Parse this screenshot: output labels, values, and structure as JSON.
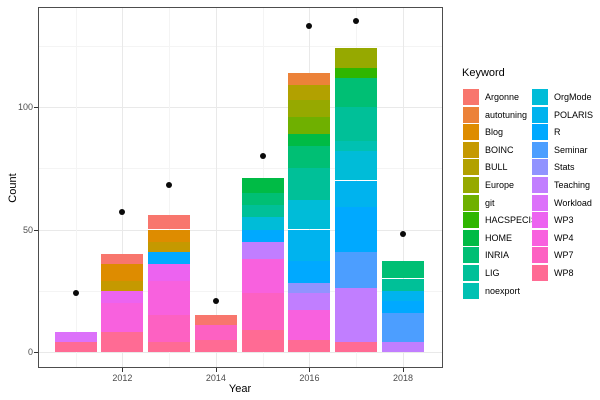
{
  "chart_data": {
    "type": "bar",
    "subtype": "stacked-bar-with-points",
    "title": "",
    "xlabel": "Year",
    "ylabel": "Count",
    "legend_title": "Keyword",
    "legend_position": "right",
    "grid": true,
    "x_major_ticks": [
      2012,
      2014,
      2016,
      2018
    ],
    "x_minor_ticks": [
      2011,
      2013,
      2015,
      2017
    ],
    "y_major_ticks": [
      0,
      50,
      100
    ],
    "y_minor_ticks": [
      25,
      75,
      125
    ],
    "xlim": [
      2010.55,
      2018.45
    ],
    "ylim": [
      -7,
      141
    ],
    "keywords": [
      {
        "name": "Argonne",
        "color": "#F8766D"
      },
      {
        "name": "autotuning",
        "color": "#EC8239"
      },
      {
        "name": "Blog",
        "color": "#DE8C00"
      },
      {
        "name": "BOINC",
        "color": "#C59900"
      },
      {
        "name": "BULL",
        "color": "#B2A100"
      },
      {
        "name": "Europe",
        "color": "#96A900"
      },
      {
        "name": "git",
        "color": "#6FB000"
      },
      {
        "name": "HACSPECIS",
        "color": "#2FB600"
      },
      {
        "name": "HOME",
        "color": "#00BB45"
      },
      {
        "name": "INRIA",
        "color": "#00BF74"
      },
      {
        "name": "LIG",
        "color": "#00C098"
      },
      {
        "name": "noexport",
        "color": "#00C1B2"
      },
      {
        "name": "OrgMode",
        "color": "#00BCD8"
      },
      {
        "name": "POLARIS",
        "color": "#00B3EE"
      },
      {
        "name": "R",
        "color": "#00A9FF"
      },
      {
        "name": "Seminar",
        "color": "#4C9EFF"
      },
      {
        "name": "Stats",
        "color": "#9193FF"
      },
      {
        "name": "Teaching",
        "color": "#C17EFF"
      },
      {
        "name": "Workload",
        "color": "#DC71FA"
      },
      {
        "name": "WP3",
        "color": "#EC63F0"
      },
      {
        "name": "WP4",
        "color": "#F861DE"
      },
      {
        "name": "WP7",
        "color": "#FD61C2"
      },
      {
        "name": "WP8",
        "color": "#FF6B94"
      }
    ],
    "bars": [
      {
        "year": 2011,
        "total": 8,
        "segments": [
          {
            "keyword": "WP8",
            "value": 4
          },
          {
            "keyword": "Workload",
            "value": 4
          }
        ]
      },
      {
        "year": 2012,
        "total": 40,
        "segments": [
          {
            "keyword": "WP8",
            "value": 8
          },
          {
            "keyword": "WP4",
            "value": 12
          },
          {
            "keyword": "WP3",
            "value": 5
          },
          {
            "keyword": "BOINC",
            "value": 4
          },
          {
            "keyword": "Blog",
            "value": 7
          },
          {
            "keyword": "Argonne",
            "value": 4
          }
        ]
      },
      {
        "year": 2013,
        "total": 56,
        "segments": [
          {
            "keyword": "WP8",
            "value": 4
          },
          {
            "keyword": "WP7",
            "value": 11
          },
          {
            "keyword": "WP4",
            "value": 14
          },
          {
            "keyword": "WP3",
            "value": 7
          },
          {
            "keyword": "R",
            "value": 5
          },
          {
            "keyword": "BOINC",
            "value": 4
          },
          {
            "keyword": "Blog",
            "value": 5
          },
          {
            "keyword": "Argonne",
            "value": 6
          }
        ]
      },
      {
        "year": 2014,
        "total": 15,
        "segments": [
          {
            "keyword": "WP8",
            "value": 5
          },
          {
            "keyword": "WP7",
            "value": 6
          },
          {
            "keyword": "Argonne",
            "value": 4
          }
        ]
      },
      {
        "year": 2015,
        "total": 71,
        "segments": [
          {
            "keyword": "WP8",
            "value": 9
          },
          {
            "keyword": "WP7",
            "value": 15
          },
          {
            "keyword": "WP4",
            "value": 14
          },
          {
            "keyword": "Teaching",
            "value": 7
          },
          {
            "keyword": "R",
            "value": 5
          },
          {
            "keyword": "OrgMode",
            "value": 5
          },
          {
            "keyword": "LIG",
            "value": 5
          },
          {
            "keyword": "INRIA",
            "value": 5
          },
          {
            "keyword": "HOME",
            "value": 6
          }
        ]
      },
      {
        "year": 2016,
        "total": 114,
        "segments": [
          {
            "keyword": "WP8",
            "value": 5
          },
          {
            "keyword": "WP4",
            "value": 12
          },
          {
            "keyword": "Teaching",
            "value": 7
          },
          {
            "keyword": "Stats",
            "value": 4
          },
          {
            "keyword": "R",
            "value": 9
          },
          {
            "keyword": "POLARIS",
            "value": 13
          },
          {
            "keyword": "OrgMode",
            "value": 12
          },
          {
            "keyword": "LIG",
            "value": 13
          },
          {
            "keyword": "INRIA",
            "value": 9
          },
          {
            "keyword": "HOME",
            "value": 5
          },
          {
            "keyword": "git",
            "value": 7
          },
          {
            "keyword": "Europe",
            "value": 7
          },
          {
            "keyword": "BULL",
            "value": 6
          },
          {
            "keyword": "autotuning",
            "value": 5
          }
        ]
      },
      {
        "year": 2017,
        "total": 124,
        "segments": [
          {
            "keyword": "WP8",
            "value": 4
          },
          {
            "keyword": "Teaching",
            "value": 22
          },
          {
            "keyword": "Seminar",
            "value": 15
          },
          {
            "keyword": "R",
            "value": 18
          },
          {
            "keyword": "POLARIS",
            "value": 11
          },
          {
            "keyword": "OrgMode",
            "value": 12
          },
          {
            "keyword": "noexport",
            "value": 4
          },
          {
            "keyword": "LIG",
            "value": 14
          },
          {
            "keyword": "INRIA",
            "value": 12
          },
          {
            "keyword": "HACSPECIS",
            "value": 4
          },
          {
            "keyword": "Europe",
            "value": 8
          }
        ]
      },
      {
        "year": 2018,
        "total": 37,
        "segments": [
          {
            "keyword": "Teaching",
            "value": 4
          },
          {
            "keyword": "Seminar",
            "value": 12
          },
          {
            "keyword": "R",
            "value": 5
          },
          {
            "keyword": "POLARIS",
            "value": 4
          },
          {
            "keyword": "LIG",
            "value": 5
          },
          {
            "keyword": "INRIA",
            "value": 7
          }
        ]
      }
    ],
    "points": [
      {
        "year": 2011,
        "value": 24
      },
      {
        "year": 2012,
        "value": 57
      },
      {
        "year": 2013,
        "value": 68
      },
      {
        "year": 2014,
        "value": 21
      },
      {
        "year": 2015,
        "value": 80
      },
      {
        "year": 2016,
        "value": 133
      },
      {
        "year": 2017,
        "value": 135
      },
      {
        "year": 2018,
        "value": 48
      }
    ]
  }
}
